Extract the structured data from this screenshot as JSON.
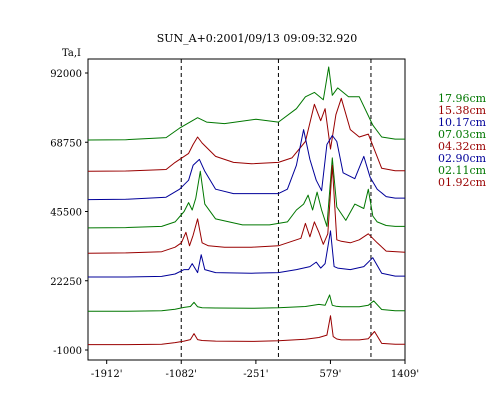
{
  "chart_data": {
    "type": "line",
    "title": "SUN_A+0:2001/09/13 09:09:32.920",
    "ylabel": "Ta,I",
    "xlabel": "",
    "xlim": [
      -2120,
      1409
    ],
    "ylim": [
      -1000,
      92000
    ],
    "x_ticks": [
      {
        "value": -1912,
        "label": "-1912'"
      },
      {
        "value": -1082,
        "label": "-1082'"
      },
      {
        "value": -251,
        "label": "-251'"
      },
      {
        "value": 579,
        "label": "579'"
      },
      {
        "value": 1409,
        "label": "1409'"
      }
    ],
    "y_ticks": [
      {
        "value": 92000,
        "label": "92000"
      },
      {
        "value": 68750,
        "label": "68750"
      },
      {
        "value": 45500,
        "label": "45500"
      },
      {
        "value": 22250,
        "label": "22250"
      },
      {
        "value": -1000,
        "label": "-1000"
      }
    ],
    "limb_markers_x": [
      -1082,
      0,
      1030
    ],
    "grid": false,
    "legend_position": "right",
    "series": [
      {
        "name": "17.96cm",
        "color": "#007700",
        "baseline": 69500,
        "x": [
          -2120,
          -1700,
          -1250,
          -1100,
          -900,
          -800,
          -600,
          -250,
          0,
          200,
          300,
          400,
          500,
          560,
          600,
          660,
          780,
          900,
          1050,
          1150,
          1300,
          1409
        ],
        "y": [
          69500,
          69600,
          70300,
          73500,
          77000,
          75500,
          75000,
          76500,
          75500,
          80000,
          84000,
          85500,
          83000,
          94000,
          84500,
          87000,
          84000,
          84000,
          74500,
          70500,
          69800,
          69800
        ]
      },
      {
        "name": "15.38cm",
        "color": "#990000",
        "baseline": 59000,
        "x": [
          -2120,
          -1700,
          -1250,
          -1150,
          -1000,
          -950,
          -900,
          -850,
          -700,
          -500,
          -300,
          0,
          150,
          300,
          400,
          470,
          520,
          580,
          640,
          700,
          800,
          900,
          1000,
          1150,
          1300,
          1409
        ],
        "y": [
          59000,
          59100,
          59600,
          62000,
          65000,
          68000,
          70500,
          68500,
          64000,
          62000,
          61500,
          62000,
          63500,
          69000,
          81500,
          76000,
          80000,
          66500,
          78000,
          83500,
          73000,
          70500,
          71500,
          60000,
          59200,
          59200
        ]
      },
      {
        "name": "10.17cm",
        "color": "#000099",
        "baseline": 49500,
        "x": [
          -2120,
          -1700,
          -1250,
          -1100,
          -1000,
          -950,
          -880,
          -820,
          -700,
          -500,
          0,
          100,
          200,
          280,
          350,
          420,
          480,
          540,
          600,
          650,
          720,
          850,
          950,
          1020,
          1100,
          1200,
          1300,
          1409
        ],
        "y": [
          49500,
          49600,
          50300,
          53000,
          56000,
          61000,
          63000,
          59000,
          53000,
          51500,
          51500,
          53000,
          61000,
          73000,
          63000,
          56000,
          52500,
          68000,
          71000,
          69000,
          58500,
          56500,
          64000,
          57000,
          53000,
          50500,
          50000,
          50000
        ]
      },
      {
        "name": "07.03cm",
        "color": "#007700",
        "baseline": 40000,
        "x": [
          -2120,
          -1700,
          -1300,
          -1150,
          -1050,
          -1000,
          -960,
          -920,
          -870,
          -820,
          -700,
          -400,
          -100,
          100,
          200,
          280,
          330,
          380,
          430,
          480,
          540,
          600,
          650,
          750,
          850,
          950,
          1000,
          1050,
          1100,
          1200,
          1300,
          1409
        ],
        "y": [
          40000,
          40100,
          40500,
          42000,
          45500,
          48500,
          46000,
          50000,
          59000,
          48000,
          43000,
          41000,
          41000,
          42000,
          46000,
          48000,
          51000,
          46000,
          52000,
          46000,
          40500,
          63500,
          47000,
          42500,
          48000,
          46500,
          53000,
          44000,
          42000,
          40800,
          40500,
          40500
        ]
      },
      {
        "name": "04.32cm",
        "color": "#990000",
        "baseline": 31500,
        "x": [
          -2120,
          -1700,
          -1300,
          -1150,
          -1080,
          -1030,
          -990,
          -950,
          -900,
          -850,
          -780,
          -600,
          -300,
          0,
          150,
          250,
          300,
          350,
          400,
          450,
          500,
          550,
          600,
          650,
          700,
          800,
          900,
          1000,
          1100,
          1200,
          1409
        ],
        "y": [
          31500,
          31600,
          32000,
          33500,
          35000,
          38500,
          34000,
          37500,
          43000,
          35000,
          34000,
          33500,
          33500,
          34000,
          35500,
          36500,
          41500,
          37000,
          42000,
          38500,
          34500,
          38000,
          61000,
          36000,
          35500,
          35000,
          36000,
          38000,
          35000,
          32200,
          31800
        ]
      },
      {
        "name": "02.90cm",
        "color": "#000099",
        "baseline": 23500,
        "x": [
          -2120,
          -1700,
          -1300,
          -1150,
          -1050,
          -1000,
          -960,
          -900,
          -860,
          -820,
          -700,
          -300,
          0,
          200,
          350,
          420,
          470,
          520,
          580,
          620,
          660,
          800,
          950,
          1050,
          1150,
          1300,
          1409
        ],
        "y": [
          23500,
          23500,
          23700,
          24500,
          26000,
          26000,
          28000,
          25000,
          31000,
          26000,
          25000,
          24800,
          25000,
          26000,
          27000,
          28500,
          26500,
          28000,
          39000,
          27000,
          26500,
          26000,
          27000,
          30000,
          24800,
          23800,
          23800
        ]
      },
      {
        "name": "02.11cm",
        "color": "#007700",
        "baseline": 12000,
        "x": [
          -2120,
          -1700,
          -1300,
          -1150,
          -1050,
          -980,
          -940,
          -900,
          -850,
          -700,
          -300,
          0,
          300,
          450,
          520,
          570,
          600,
          640,
          700,
          900,
          1000,
          1060,
          1150,
          1300,
          1409
        ],
        "y": [
          12000,
          12000,
          12200,
          12700,
          13300,
          13600,
          15000,
          13500,
          13200,
          13100,
          13000,
          13200,
          13600,
          14300,
          14000,
          17500,
          14000,
          13700,
          13500,
          13500,
          14000,
          15500,
          12600,
          12200,
          12200
        ]
      },
      {
        "name": "01.92cm",
        "color": "#990000",
        "baseline": 800,
        "x": [
          -2120,
          -1700,
          -1300,
          -1150,
          -1050,
          -980,
          -940,
          -900,
          -850,
          -700,
          -300,
          0,
          300,
          450,
          540,
          580,
          610,
          650,
          700,
          900,
          1000,
          1070,
          1150,
          1300,
          1409
        ],
        "y": [
          800,
          800,
          900,
          1500,
          2000,
          2500,
          4500,
          2500,
          2200,
          2000,
          1900,
          2100,
          2600,
          3200,
          4000,
          10500,
          3500,
          2700,
          2400,
          2400,
          2800,
          5200,
          1200,
          900,
          900
        ]
      }
    ]
  }
}
